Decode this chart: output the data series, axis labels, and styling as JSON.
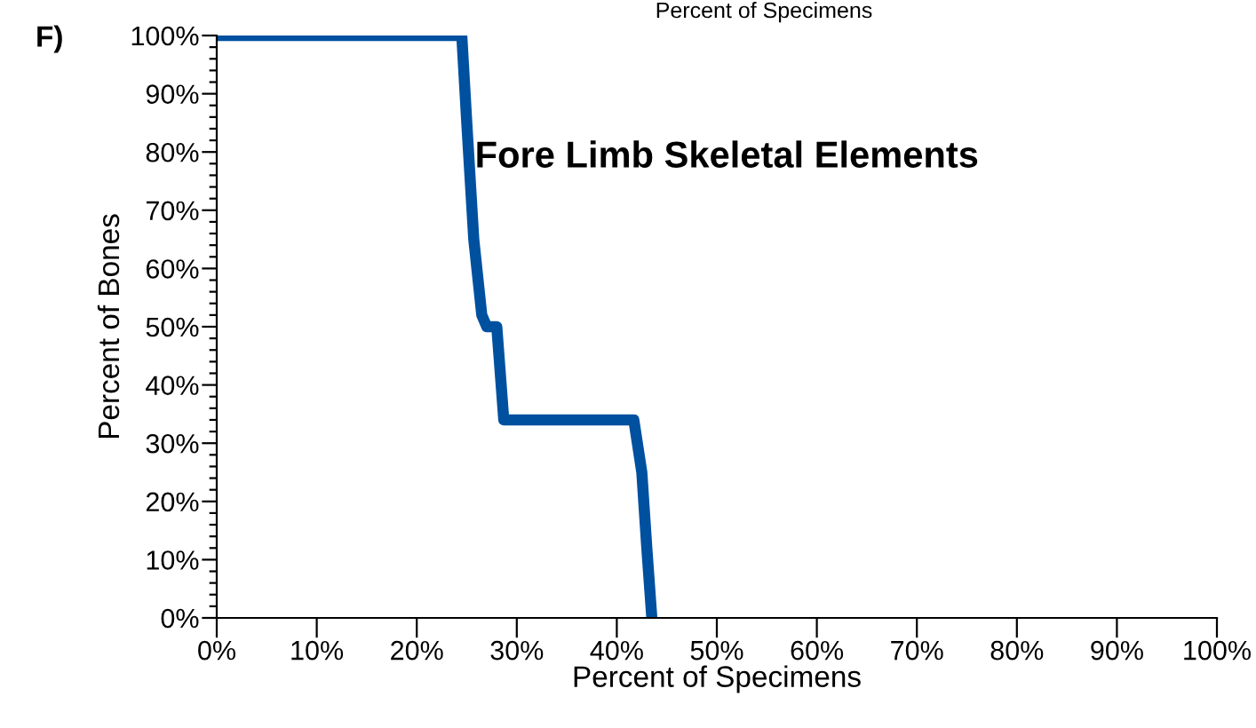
{
  "chart_data": {
    "type": "line",
    "title": "Fore Limb Skeletal Elements",
    "xlabel": "Percent of Specimens",
    "ylabel": "Percent of Bones",
    "annotations": [
      "F)",
      "Percent of Specimens"
    ],
    "x": [
      0,
      24.5,
      25,
      25.7,
      26.5,
      27,
      28,
      28.7,
      41.7,
      42.5,
      43,
      43.5
    ],
    "series": [
      {
        "color": "#0050a0",
        "values": [
          100,
          100,
          85,
          65,
          52,
          50,
          50,
          34,
          34,
          25,
          12,
          0
        ]
      }
    ],
    "xlim": [
      0,
      100
    ],
    "ylim": [
      0,
      100
    ],
    "xticks": [
      {
        "value": 0,
        "label": "0%"
      },
      {
        "value": 10,
        "label": "10%"
      },
      {
        "value": 20,
        "label": "20%"
      },
      {
        "value": 30,
        "label": "30%"
      },
      {
        "value": 40,
        "label": "40%"
      },
      {
        "value": 50,
        "label": "50%"
      },
      {
        "value": 60,
        "label": "60%"
      },
      {
        "value": 70,
        "label": "70%"
      },
      {
        "value": 80,
        "label": "80%"
      },
      {
        "value": 90,
        "label": "90%"
      },
      {
        "value": 100,
        "label": "100%"
      }
    ],
    "yticks": [
      {
        "value": 0,
        "label": "0%"
      },
      {
        "value": 10,
        "label": "10%"
      },
      {
        "value": 20,
        "label": "20%"
      },
      {
        "value": 30,
        "label": "30%"
      },
      {
        "value": 40,
        "label": "40%"
      },
      {
        "value": 50,
        "label": "50%"
      },
      {
        "value": 60,
        "label": "60%"
      },
      {
        "value": 70,
        "label": "70%"
      },
      {
        "value": 80,
        "label": "80%"
      },
      {
        "value": 90,
        "label": "90%"
      },
      {
        "value": 100,
        "label": "100%"
      }
    ],
    "grid": false,
    "legend": false,
    "marker": "none",
    "line_style": "solid"
  }
}
